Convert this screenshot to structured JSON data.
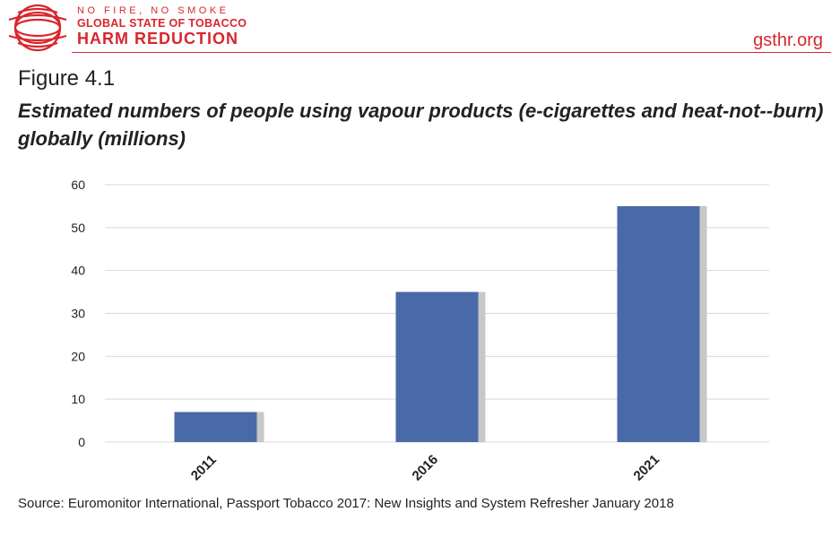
{
  "header": {
    "brand_line1": "NO FIRE, NO SMOKE",
    "brand_line2": "GLOBAL STATE OF TOBACCO",
    "brand_line3": "HARM REDUCTION",
    "site": "gsthr.org"
  },
  "figure_label": "Figure 4.1",
  "source": "Source: Euromonitor International, Passport Tobacco 2017: New Insights and System Refresher January 2018",
  "colors": {
    "brand": "#d8262d",
    "bar": "#4a69a8",
    "bar_shadow": "#c8c8c8",
    "grid": "#d9d9d9"
  },
  "chart_data": {
    "type": "bar",
    "title": "Estimated numbers of people using vapour products (e-cigarettes and heat-not--burn) globally (millions)",
    "categories": [
      "2011",
      "2016",
      "2021"
    ],
    "values": [
      7,
      35,
      55
    ],
    "ylim": [
      0,
      60
    ],
    "yticks": [
      0,
      10,
      20,
      30,
      40,
      50,
      60
    ],
    "grid": true,
    "legend": "none"
  }
}
